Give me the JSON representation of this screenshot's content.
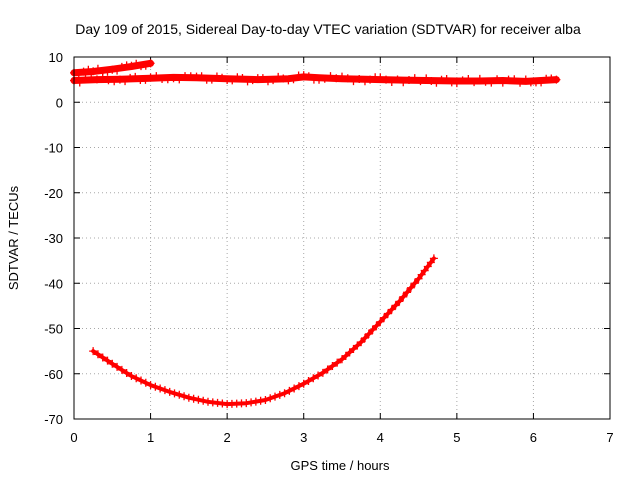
{
  "chart_data": {
    "type": "line",
    "title": "Day 109 of 2015, Sidereal Day-to-day VTEC variation (SDTVAR) for receiver alba",
    "xlabel": "GPS time / hours",
    "ylabel": "SDTVAR / TECUs",
    "xlim": [
      0,
      7
    ],
    "ylim": [
      -70,
      10
    ],
    "xticks": [
      0,
      1,
      2,
      3,
      4,
      5,
      6,
      7
    ],
    "yticks": [
      -70,
      -60,
      -50,
      -40,
      -30,
      -20,
      -10,
      0,
      10
    ],
    "grid": true,
    "legend": "none",
    "color": "#ff0000",
    "series": [
      {
        "x": [
          0,
          0.25,
          0.5,
          0.75,
          1.0
        ],
        "y": [
          6.5,
          6.8,
          7.3,
          7.9,
          8.6
        ]
      },
      {
        "x": [
          0,
          0.3,
          0.6,
          1.0,
          1.3,
          1.6,
          2.0,
          2.4,
          2.8,
          3.0,
          3.2,
          3.5,
          3.8,
          4.0,
          4.3,
          4.6,
          5.0,
          5.3,
          5.6,
          5.9,
          6.1,
          6.3
        ],
        "y": [
          4.8,
          5.0,
          5.1,
          5.3,
          5.5,
          5.4,
          5.2,
          5.0,
          5.2,
          5.6,
          5.4,
          5.2,
          5.1,
          5.0,
          4.9,
          4.8,
          4.7,
          4.7,
          4.8,
          4.6,
          4.8,
          5.0
        ]
      },
      {
        "x": [
          0.25,
          0.5,
          0.75,
          1.0,
          1.25,
          1.5,
          1.75,
          2.0,
          2.25,
          2.5,
          2.75,
          3.0,
          3.25,
          3.5,
          3.75,
          4.0,
          4.25,
          4.5,
          4.7
        ],
        "y": [
          -55,
          -57.8,
          -60.5,
          -62.5,
          -64,
          -65.3,
          -66.2,
          -66.7,
          -66.5,
          -65.8,
          -64.3,
          -62.2,
          -59.8,
          -56.8,
          -53,
          -48.5,
          -44,
          -39,
          -34.5
        ]
      }
    ]
  }
}
